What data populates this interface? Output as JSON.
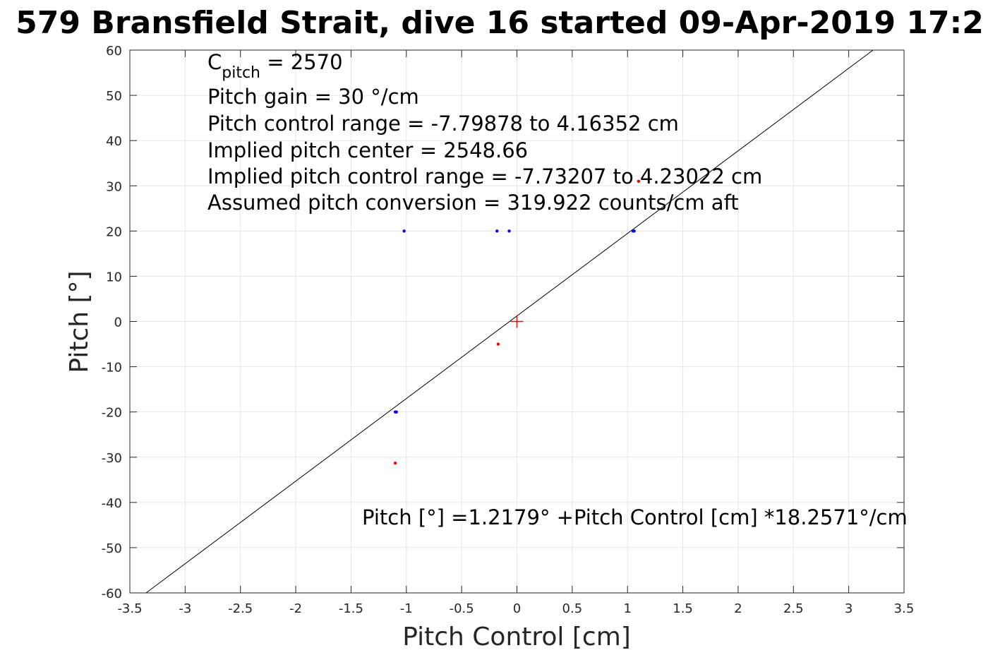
{
  "chart_data": {
    "type": "scatter",
    "title": "579 Bransfield Strait, dive 16 started 09-Apr-2019 17:2",
    "xlabel": "Pitch Control [cm]",
    "ylabel": "Pitch [°]",
    "xlim": [
      -3.5,
      3.5
    ],
    "ylim": [
      -60,
      60
    ],
    "xticks": [
      -3.5,
      -3,
      -2.5,
      -2,
      -1.5,
      -1,
      -0.5,
      0,
      0.5,
      1,
      1.5,
      2,
      2.5,
      3,
      3.5
    ],
    "yticks": [
      -60,
      -50,
      -40,
      -30,
      -20,
      -10,
      0,
      10,
      20,
      30,
      40,
      50,
      60
    ],
    "grid": true,
    "fit_line": {
      "intercept": 1.2179,
      "slope": 18.2571,
      "color": "#000000"
    },
    "center_marker": {
      "x": 0,
      "y": 0,
      "color": "#ff0000",
      "marker": "+"
    },
    "series": [
      {
        "color": "#0000ff",
        "points": [
          [
            -1.02,
            20
          ],
          [
            -0.18,
            20
          ],
          [
            -0.07,
            20
          ],
          [
            1.05,
            20
          ],
          [
            1.06,
            20
          ],
          [
            -1.1,
            -20
          ],
          [
            -1.09,
            -20
          ]
        ]
      },
      {
        "color": "#ff0000",
        "points": [
          [
            1.1,
            31
          ],
          [
            -0.17,
            -5
          ],
          [
            -1.1,
            -31.3
          ]
        ]
      }
    ],
    "annotations": {
      "cpitch_base": "C",
      "cpitch_sub": "pitch",
      "cpitch_rest": " = 2570",
      "pitch_gain": "Pitch gain = 30 °/cm",
      "control_range": "Pitch control range = -7.79878 to 4.16352 cm",
      "implied_center": "Implied pitch center = 2548.66",
      "implied_range": "Implied pitch control range = -7.73207 to 4.23022 cm",
      "conversion": "Assumed pitch conversion = 319.922 counts/cm aft",
      "fit_equation": "Pitch [°] =1.2179° +Pitch Control [cm] *18.2571°/cm"
    }
  }
}
